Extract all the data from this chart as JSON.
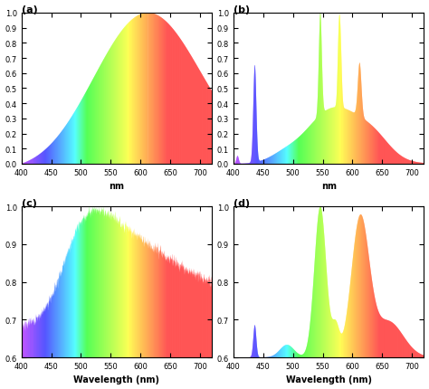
{
  "wavelength_range": [
    400,
    720
  ],
  "panel_titles": [
    "(a)",
    "(b)",
    "(c)",
    "(d)"
  ],
  "xlabel_top": "nm",
  "xlabel_bottom": "Wavelength (nm)",
  "ylim_a": [
    0,
    1.0
  ],
  "ylim_b": [
    0,
    1.0
  ],
  "ylim_c": [
    0.6,
    1.0
  ],
  "ylim_d": [
    0.6,
    1.0
  ],
  "yticks_a": [
    0.0,
    0.1,
    0.2,
    0.3,
    0.4,
    0.5,
    0.6,
    0.7,
    0.8,
    0.9,
    1.0
  ],
  "yticks_b": [
    0.0,
    0.1,
    0.2,
    0.3,
    0.4,
    0.5,
    0.6,
    0.7,
    0.8,
    0.9,
    1.0
  ],
  "yticks_c": [
    0.6,
    0.7,
    0.8,
    0.9,
    1.0
  ],
  "yticks_d": [
    0.6,
    0.7,
    0.8,
    0.9,
    1.0
  ],
  "xticks": [
    400,
    450,
    500,
    550,
    600,
    650,
    700
  ]
}
